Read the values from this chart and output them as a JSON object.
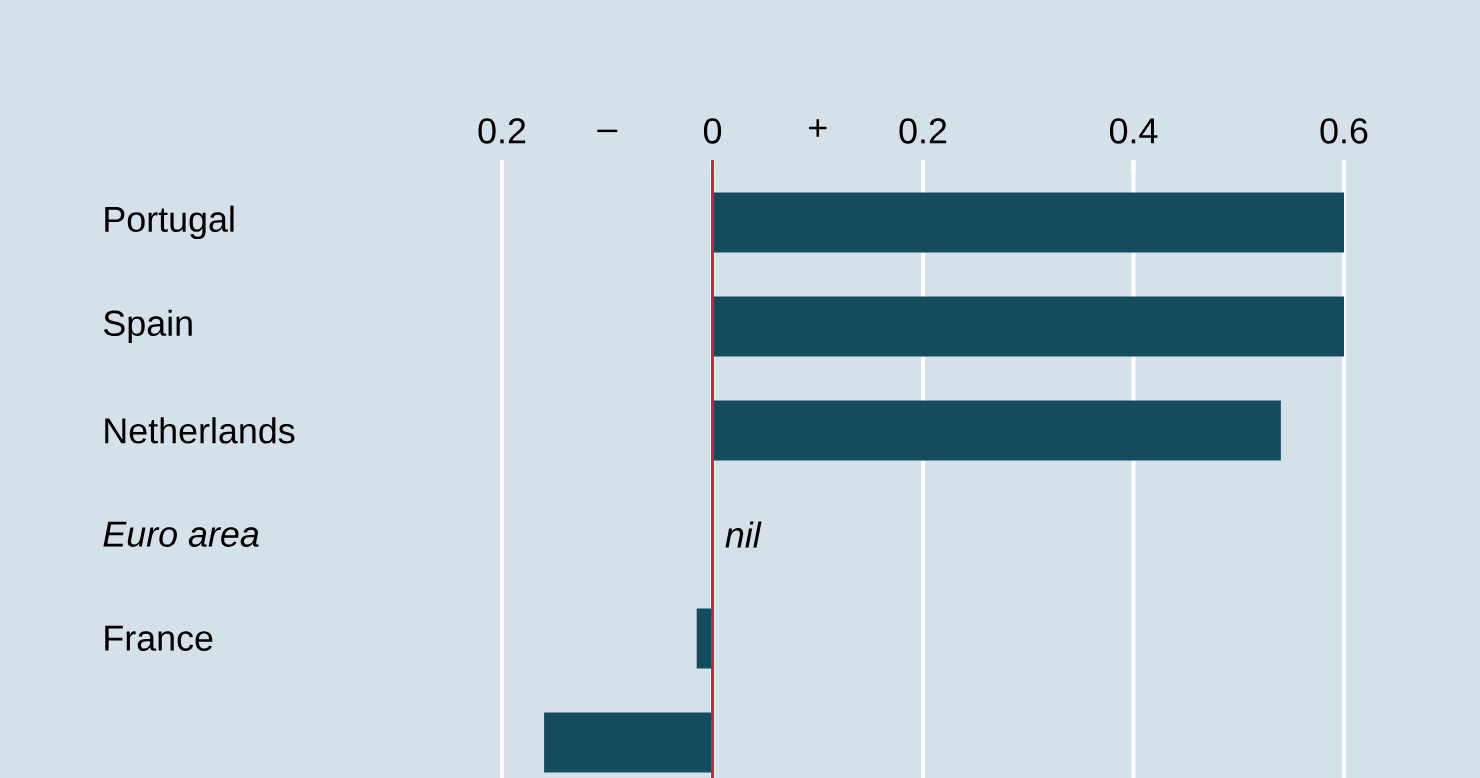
{
  "chart_data": {
    "type": "bar",
    "orientation": "horizontal",
    "categories": [
      "Portugal",
      "Spain",
      "Netherlands",
      "*Euro area*",
      "France",
      null
    ],
    "values": [
      0.6,
      0.6,
      0.54,
      0,
      -0.015,
      -0.16
    ],
    "value_labels": [
      null,
      null,
      null,
      "nil",
      null,
      null
    ],
    "color": "#144b5e",
    "xlim": [
      -0.2,
      0.6
    ],
    "xticks": [
      {
        "value": -0.2,
        "label": "0.2"
      },
      0,
      0.2,
      0.4,
      0.6
    ],
    "grid": "x",
    "ref_lines": [
      {
        "axis": "x",
        "value": 0,
        "color": "#c8282e"
      }
    ],
    "annotations": [
      "–",
      "+"
    ]
  }
}
